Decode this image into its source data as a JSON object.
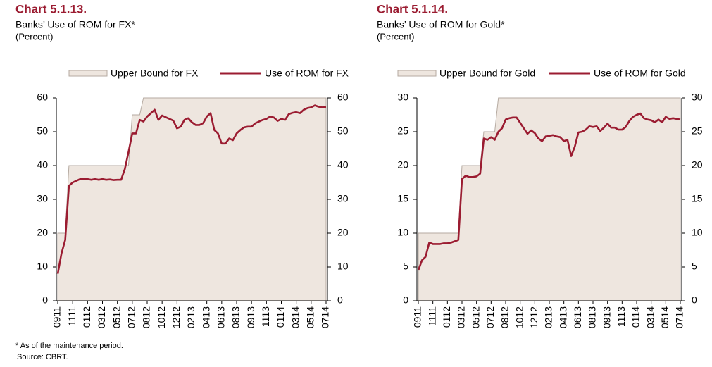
{
  "chart_data": [
    {
      "type": "line",
      "title": "Chart 5.1.13.",
      "subtitle": "Banks’ Use of ROM for FX*",
      "unit": "(Percent)",
      "categories": [
        "0911",
        null,
        null,
        null,
        "1111",
        null,
        null,
        null,
        "0112",
        null,
        null,
        null,
        "0312",
        null,
        null,
        null,
        "0512",
        null,
        null,
        null,
        "0712",
        null,
        null,
        null,
        "0812",
        null,
        null,
        null,
        "1012",
        null,
        null,
        null,
        "1212",
        null,
        null,
        null,
        "0213",
        null,
        null,
        null,
        "0413",
        null,
        null,
        null,
        "0613",
        null,
        null,
        null,
        "0813",
        null,
        null,
        null,
        "0913",
        null,
        null,
        null,
        "1113",
        null,
        null,
        null,
        "0114",
        null,
        null,
        null,
        "0314",
        null,
        null,
        null,
        "0514",
        null,
        null,
        null,
        "0714"
      ],
      "series": [
        {
          "name": "Upper Bound for FX",
          "type": "area",
          "color": "#eee6df",
          "edge": "#b5aaa1",
          "values": [
            20,
            20,
            20,
            40,
            40,
            40,
            40,
            40,
            40,
            40,
            40,
            40,
            40,
            40,
            40,
            40,
            40,
            40,
            40,
            40,
            55,
            55,
            55,
            60,
            60,
            60,
            60,
            60,
            60,
            60,
            60,
            60,
            60,
            60,
            60,
            60,
            60,
            60,
            60,
            60,
            60,
            60,
            60,
            60,
            60,
            60,
            60,
            60,
            60,
            60,
            60,
            60,
            60,
            60,
            60,
            60,
            60,
            60,
            60,
            60,
            60,
            60,
            60,
            60,
            60,
            60,
            60,
            60,
            60,
            60,
            60,
            60,
            60
          ]
        },
        {
          "name": "Use of ROM for FX",
          "type": "line",
          "color": "#9b1c31",
          "values": [
            8,
            14,
            18,
            34,
            35,
            35.5,
            36,
            36,
            36,
            35.8,
            36,
            35.8,
            36,
            35.8,
            35.9,
            35.7,
            35.8,
            35.8,
            39,
            44,
            49.5,
            49.5,
            53.5,
            53,
            54.5,
            55.5,
            56.5,
            53.5,
            54.8,
            54.3,
            53.8,
            53.3,
            51,
            51.5,
            53.5,
            54,
            52.8,
            52,
            52,
            52.5,
            54.5,
            55.5,
            50.5,
            49.5,
            46.5,
            46.5,
            48,
            47.5,
            49.5,
            50.5,
            51.3,
            51.5,
            51.5,
            52.5,
            53,
            53.5,
            53.8,
            54.5,
            54.2,
            53.2,
            53.8,
            53.5,
            55.2,
            55.6,
            55.8,
            55.5,
            56.5,
            57,
            57.2,
            57.8,
            57.4,
            57.2,
            57.3
          ]
        }
      ],
      "ylim": [
        0,
        60
      ],
      "yticks": [
        0,
        10,
        20,
        30,
        40,
        50,
        60
      ],
      "y2lim": [
        0,
        60
      ],
      "y2ticks": [
        0,
        10,
        20,
        30,
        40,
        50,
        60
      ]
    },
    {
      "type": "line",
      "title": "Chart 5.1.14.",
      "subtitle": "Banks’ Use of ROM for Gold*",
      "unit": "(Percent)",
      "categories": [
        "0911",
        null,
        null,
        null,
        "1111",
        null,
        null,
        null,
        "0112",
        null,
        null,
        null,
        "0312",
        null,
        null,
        null,
        "0512",
        null,
        null,
        null,
        "0712",
        null,
        null,
        null,
        "0812",
        null,
        null,
        null,
        "1012",
        null,
        null,
        null,
        "1212",
        null,
        null,
        null,
        "0213",
        null,
        null,
        null,
        "0413",
        null,
        null,
        null,
        "0613",
        null,
        null,
        null,
        "0813",
        null,
        null,
        null,
        "0913",
        null,
        null,
        null,
        "1113",
        null,
        null,
        null,
        "0114",
        null,
        null,
        null,
        "0314",
        null,
        null,
        null,
        "0514",
        null,
        null,
        null,
        "0714"
      ],
      "series": [
        {
          "name": "Upper Bound for Gold",
          "type": "area",
          "color": "#eee6df",
          "edge": "#b5aaa1",
          "values": [
            10,
            10,
            10,
            10,
            10,
            10,
            10,
            10,
            10,
            10,
            10,
            10,
            20,
            20,
            20,
            20,
            20,
            20,
            25,
            25,
            25,
            25,
            30,
            30,
            30,
            30,
            30,
            30,
            30,
            30,
            30,
            30,
            30,
            30,
            30,
            30,
            30,
            30,
            30,
            30,
            30,
            30,
            30,
            30,
            30,
            30,
            30,
            30,
            30,
            30,
            30,
            30,
            30,
            30,
            30,
            30,
            30,
            30,
            30,
            30,
            30,
            30,
            30,
            30,
            30,
            30,
            30,
            30,
            30,
            30,
            30,
            30,
            30
          ]
        },
        {
          "name": "Use of ROM for Gold",
          "type": "line",
          "color": "#9b1c31",
          "values": [
            4.5,
            6,
            6.5,
            8.6,
            8.4,
            8.4,
            8.4,
            8.5,
            8.5,
            8.6,
            8.8,
            9,
            18,
            18.5,
            18.3,
            18.3,
            18.4,
            18.8,
            24,
            23.8,
            24.2,
            23.8,
            25,
            25.5,
            26.8,
            27,
            27.1,
            27.1,
            26.3,
            25.5,
            24.7,
            25.2,
            24.8,
            24,
            23.6,
            24.3,
            24.4,
            24.5,
            24.3,
            24.2,
            23.6,
            23.8,
            21.4,
            22.8,
            24.9,
            25,
            25.3,
            25.8,
            25.7,
            25.8,
            25.1,
            25.6,
            26.2,
            25.6,
            25.6,
            25.3,
            25.3,
            25.7,
            26.6,
            27.2,
            27.5,
            27.7,
            27,
            26.8,
            26.7,
            26.4,
            26.8,
            26.4,
            27.2,
            26.9,
            27,
            26.9,
            26.8
          ]
        }
      ],
      "ylim": [
        0,
        30
      ],
      "yticks": [
        0,
        5,
        10,
        15,
        20,
        25,
        30
      ],
      "y2lim": [
        0,
        30
      ],
      "y2ticks": [
        0,
        5,
        10,
        15,
        20,
        25,
        30
      ]
    }
  ],
  "notes": [
    "* As of the maintenance period.",
    "Source: CBRT."
  ]
}
